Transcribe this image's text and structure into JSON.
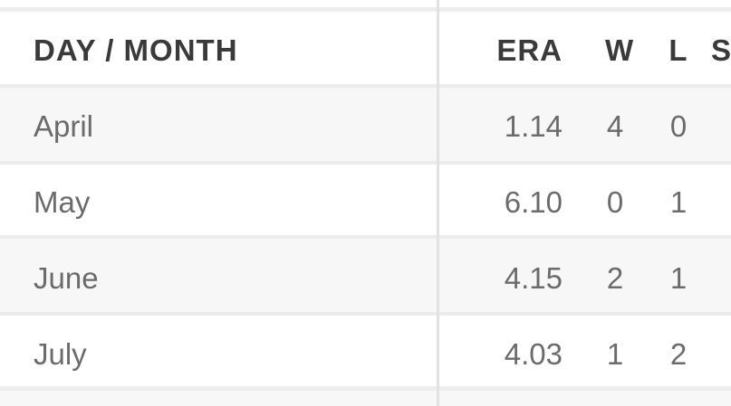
{
  "header": {
    "name": "DAY / MONTH",
    "era": "ERA",
    "w": "W",
    "l": "L",
    "s": "S"
  },
  "rows": [
    {
      "name": "April",
      "era": "1.14",
      "w": "4",
      "l": "0"
    },
    {
      "name": "May",
      "era": "6.10",
      "w": "0",
      "l": "1"
    },
    {
      "name": "June",
      "era": "4.15",
      "w": "2",
      "l": "1"
    },
    {
      "name": "July",
      "era": "4.03",
      "w": "1",
      "l": "2"
    }
  ]
}
